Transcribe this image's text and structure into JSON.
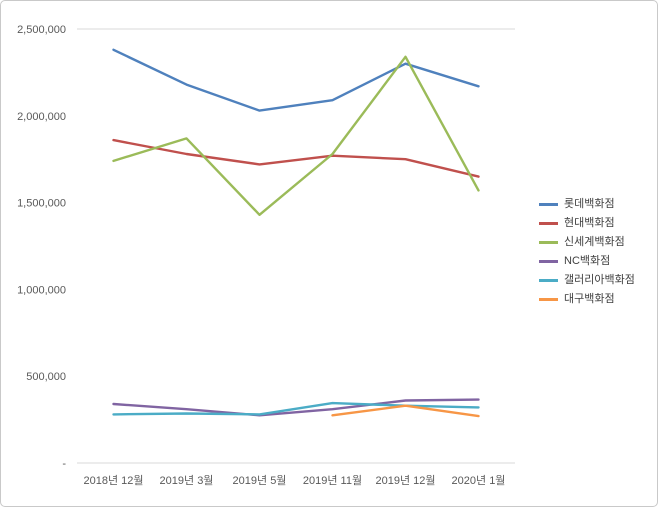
{
  "chart_data": {
    "type": "line",
    "title": "",
    "xlabel": "",
    "ylabel": "",
    "categories": [
      "2018년 12월",
      "2019년 3월",
      "2019년 5월",
      "2019년 11월",
      "2019년 12월",
      "2020년 1월"
    ],
    "series": [
      {
        "name": "롯데백화점",
        "color": "#4F81BD",
        "values": [
          2380000,
          2180000,
          2030000,
          2090000,
          2300000,
          2170000
        ]
      },
      {
        "name": "현대백화점",
        "color": "#C0504D",
        "values": [
          1860000,
          1780000,
          1720000,
          1770000,
          1750000,
          1650000
        ]
      },
      {
        "name": "신세계백화점",
        "color": "#9BBB59",
        "values": [
          1740000,
          1870000,
          1430000,
          1780000,
          2340000,
          1570000
        ]
      },
      {
        "name": "NC백화점",
        "color": "#8064A2",
        "values": [
          340000,
          310000,
          275000,
          310000,
          360000,
          365000
        ]
      },
      {
        "name": "갤러리아백화점",
        "color": "#4BACC6",
        "values": [
          280000,
          285000,
          280000,
          345000,
          330000,
          320000
        ]
      },
      {
        "name": "대구백화점",
        "color": "#F79646",
        "values": [
          null,
          null,
          null,
          275000,
          330000,
          270000
        ]
      }
    ],
    "ylim": [
      0,
      2500000
    ],
    "yticks": [
      {
        "value": 0,
        "label": "-"
      },
      {
        "value": 500000,
        "label": "500,000"
      },
      {
        "value": 1000000,
        "label": "1,000,000"
      },
      {
        "value": 1500000,
        "label": "1,500,000"
      },
      {
        "value": 2000000,
        "label": "2,000,000"
      },
      {
        "value": 2500000,
        "label": "2,500,000"
      }
    ],
    "grid": "top-line-only",
    "legend_position": "right",
    "axis_color": "#d9d9d9",
    "axis_text_color": "#595959"
  }
}
